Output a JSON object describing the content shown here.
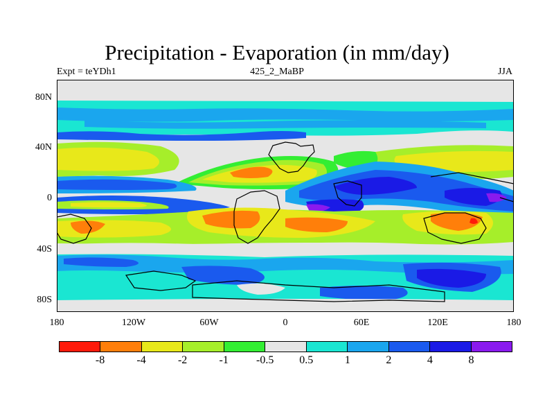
{
  "title": "Precipitation - Evaporation (in mm/day)",
  "subtitle_left": "Expt = teYDh1",
  "subtitle_center": "425_2_MaBP",
  "subtitle_right": "JJA",
  "lat_labels": [
    "80N",
    "40N",
    "0",
    "40S",
    "80S"
  ],
  "lon_labels": [
    "180",
    "120W",
    "60W",
    "0",
    "60E",
    "120E",
    "180"
  ],
  "colorbar": {
    "colors": [
      "#ff1a0a",
      "#ff7f0a",
      "#e8e81a",
      "#a6ee2a",
      "#33ee33",
      "#e6e6e6",
      "#1ae6d2",
      "#1aa6ee",
      "#1a5aee",
      "#1a1ae6",
      "#8a1aee"
    ],
    "labels": [
      "-8",
      "-4",
      "-2",
      "-1",
      "-0.5",
      "0.5",
      "1",
      "2",
      "4",
      "8"
    ]
  }
}
